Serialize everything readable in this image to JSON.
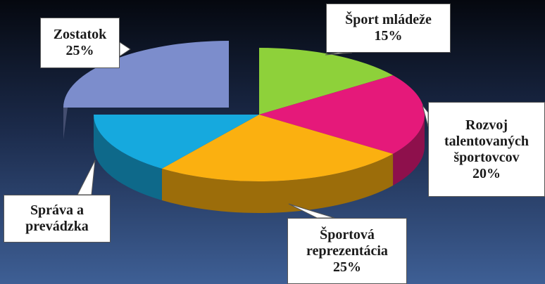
{
  "chart_data": {
    "type": "pie3d",
    "categories": [
      "Šport mládeže",
      "Rozvoj talentovaných športovcov",
      "Športová reprezentácia",
      "Správa a prevádzka",
      "Zostatok"
    ],
    "values": [
      15,
      20,
      25,
      15,
      25
    ],
    "value_labels": [
      "15%",
      "20%",
      "25%",
      null,
      "25%"
    ],
    "colors": [
      "#8ed13a",
      "#e5197a",
      "#fbb010",
      "#16a9de",
      "#7c8dcc"
    ],
    "exploded": [
      false,
      false,
      false,
      false,
      true
    ]
  }
}
